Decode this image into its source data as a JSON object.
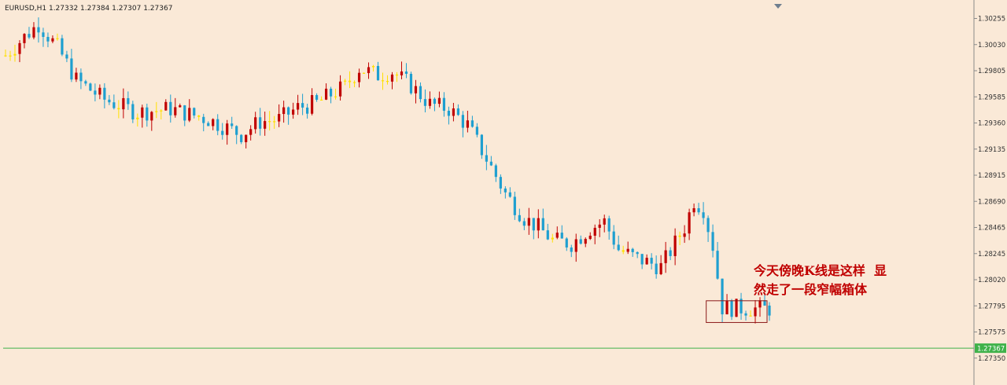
{
  "window": {
    "symbol_header": "EURUSD,H1  1.27332 1.27384 1.27307 1.27367"
  },
  "annotation": {
    "line1": "今天傍晚K线是这样  显",
    "line2": "然走了一段窄幅箱体"
  },
  "colors": {
    "background": "#fae9d7",
    "bull": "#c00000",
    "bear": "#1e9fd0",
    "doji": "#ffe000",
    "axis": "#8a8a8a",
    "tick_text": "#333333",
    "hline": "#3fb24a",
    "box": "#8b1a1a",
    "price_tag_bg": "#3fb24a",
    "price_tag_text": "#ffffff"
  },
  "chart_data": {
    "type": "candlestick",
    "symbol": "EURUSD",
    "timeframe": "H1",
    "ylim": [
      1.2708,
      1.3034
    ],
    "y_ticks": [
      "1.30255",
      "1.30030",
      "1.29805",
      "1.29585",
      "1.29360",
      "1.29135",
      "1.28915",
      "1.28690",
      "1.28465",
      "1.28245",
      "1.28020",
      "1.27795",
      "1.27575",
      "1.27350"
    ],
    "current_price_label": "1.27367",
    "horizontal_line": 1.2737,
    "box": {
      "from_index": 149,
      "to_index": 161,
      "high": 1.27778,
      "low": 1.27591
    },
    "close_path": [
      [
        0,
        1.2989
      ],
      [
        4,
        1.3005
      ],
      [
        7,
        1.3016
      ],
      [
        11,
        1.2996
      ],
      [
        15,
        1.2968
      ],
      [
        21,
        1.2951
      ],
      [
        28,
        1.294
      ],
      [
        35,
        1.2943
      ],
      [
        43,
        1.2934
      ],
      [
        50,
        1.2921
      ],
      [
        54,
        1.2932
      ],
      [
        58,
        1.2934
      ],
      [
        62,
        1.2944
      ],
      [
        66,
        1.2948
      ],
      [
        70,
        1.2958
      ],
      [
        72,
        1.2962
      ],
      [
        75,
        1.2978
      ],
      [
        79,
        1.2972
      ],
      [
        82,
        1.2975
      ],
      [
        86,
        1.2963
      ],
      [
        90,
        1.2947
      ],
      [
        94,
        1.2943
      ],
      [
        98,
        1.2929
      ],
      [
        102,
        1.29
      ],
      [
        106,
        1.287
      ],
      [
        110,
        1.2849
      ],
      [
        113,
        1.2841
      ],
      [
        116,
        1.283
      ],
      [
        120,
        1.2827
      ],
      [
        124,
        1.284
      ],
      [
        127,
        1.2846
      ],
      [
        130,
        1.2822
      ],
      [
        134,
        1.2814
      ],
      [
        139,
        1.2807
      ],
      [
        144,
        1.2841
      ],
      [
        146,
        1.2864
      ],
      [
        148,
        1.2857
      ],
      [
        150,
        1.2825
      ],
      [
        152,
        1.2772
      ],
      [
        158,
        1.2771
      ],
      [
        162,
        1.2771
      ]
    ]
  }
}
